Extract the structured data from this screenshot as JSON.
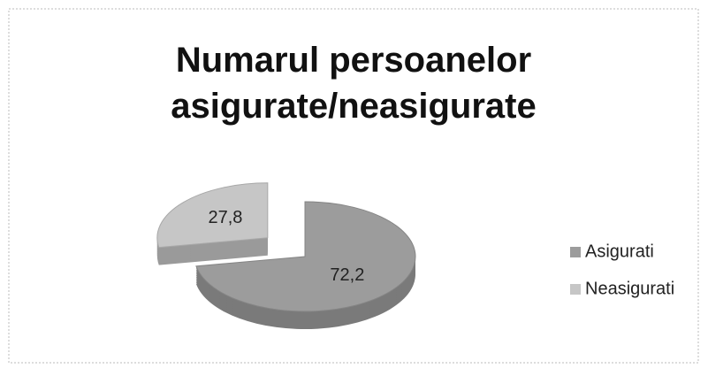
{
  "chart_data": {
    "type": "pie",
    "title": "Numarul persoanelor asigurate/neasigurate",
    "categories": [
      "Asigurati",
      "Neasigurati"
    ],
    "values": [
      72.2,
      27.8
    ],
    "value_labels": [
      "72,2",
      "27,8"
    ],
    "colors": [
      "#9c9c9c",
      "#c6c6c6"
    ],
    "legend": "right"
  }
}
